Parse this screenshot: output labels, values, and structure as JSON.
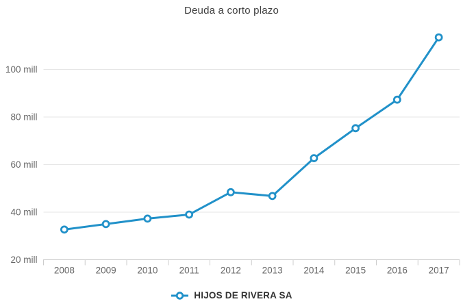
{
  "title": "Deuda a corto plazo",
  "legend": {
    "label": "HIJOS DE RIVERA SA"
  },
  "colors": {
    "line": "#2191c9",
    "marker_fill": "#ffffff",
    "title_text": "#3c3c3c",
    "axis_text": "#666666",
    "legend_text": "#333333",
    "gridline": "#e6e6e6",
    "axis_line": "#cccccc"
  },
  "chart_data": {
    "type": "line",
    "title": "Deuda a corto plazo",
    "categories": [
      "2008",
      "2009",
      "2010",
      "2011",
      "2012",
      "2013",
      "2014",
      "2015",
      "2016",
      "2017"
    ],
    "series": [
      {
        "name": "HIJOS DE RIVERA SA",
        "values": [
          32.7,
          35,
          37.3,
          39,
          48.4,
          46.8,
          62.7,
          75.3,
          87.3,
          113.5
        ]
      }
    ],
    "unit": "mill",
    "y_ticks": [
      20,
      40,
      60,
      80,
      100
    ],
    "y_tick_label_suffix": " mill",
    "ylim": [
      20,
      120
    ],
    "xlabel": "",
    "ylabel": "",
    "grid": "horizontal-only",
    "legend_position": "bottom-center",
    "marker": "open-circle"
  }
}
